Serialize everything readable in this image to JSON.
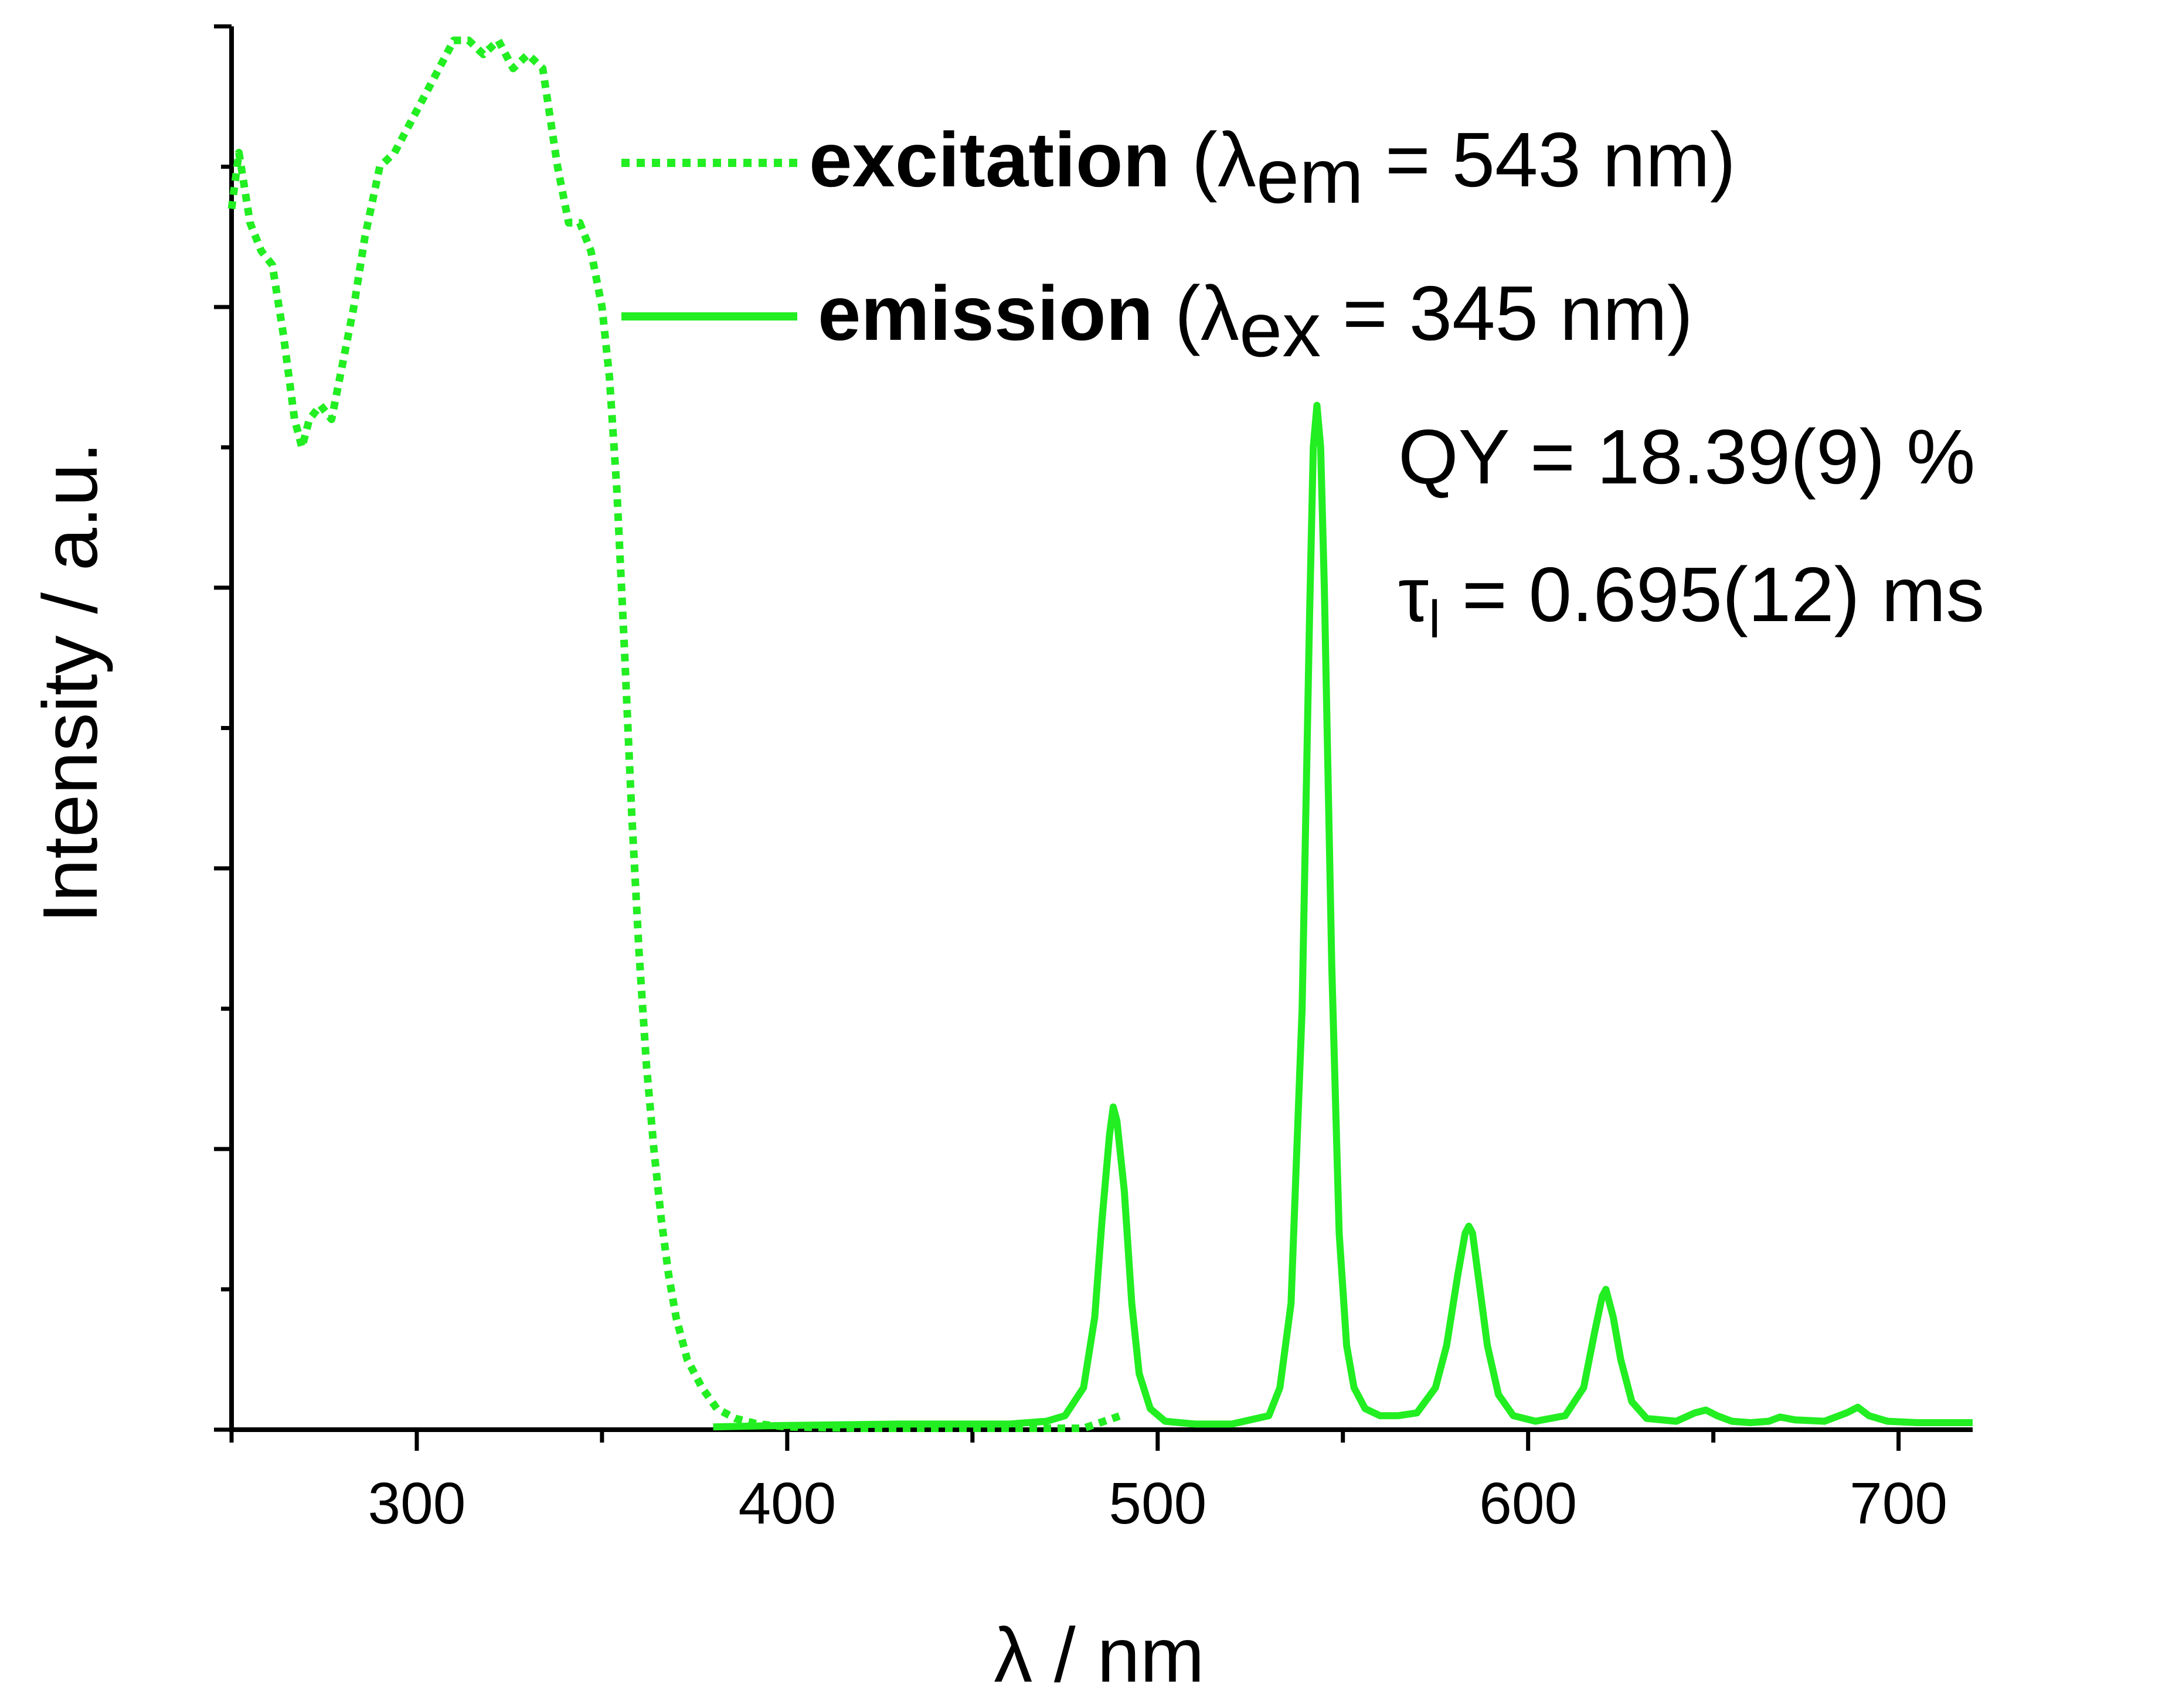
{
  "chart_data": {
    "type": "line",
    "xlabel": "λ / nm",
    "ylabel": "Intensity / a.u.",
    "xlim": [
      250,
      720
    ],
    "ylim": [
      0,
      1.0
    ],
    "x_ticks": [
      300,
      400,
      500,
      600,
      700
    ],
    "y_tick_labels_shown": false,
    "grid": false,
    "legend_position": "top-right",
    "series": [
      {
        "name": "excitation",
        "legend_suffix": "(λem = 543 nm)",
        "style": "dotted",
        "color": "#22ee22",
        "x": [
          250,
          252,
          255,
          258,
          261,
          264,
          267,
          269,
          271,
          274,
          277,
          280,
          283,
          286,
          290,
          294,
          298,
          302,
          306,
          310,
          314,
          318,
          322,
          326,
          330,
          334,
          338,
          341,
          344,
          347,
          350,
          352,
          354,
          356,
          358,
          360,
          362,
          364,
          366,
          368,
          370,
          373,
          377,
          381,
          386,
          392,
          400,
          420,
          450,
          480,
          490
        ],
        "y": [
          0.87,
          0.91,
          0.86,
          0.84,
          0.83,
          0.78,
          0.72,
          0.7,
          0.72,
          0.73,
          0.72,
          0.76,
          0.8,
          0.85,
          0.9,
          0.91,
          0.93,
          0.95,
          0.97,
          0.99,
          0.99,
          0.98,
          0.99,
          0.97,
          0.98,
          0.97,
          0.9,
          0.86,
          0.86,
          0.84,
          0.8,
          0.75,
          0.67,
          0.56,
          0.44,
          0.34,
          0.26,
          0.2,
          0.15,
          0.11,
          0.08,
          0.05,
          0.03,
          0.015,
          0.008,
          0.004,
          0.002,
          0.001,
          0.001,
          0.001,
          0.01
        ]
      },
      {
        "name": "emission",
        "legend_suffix": "(λex = 345 nm)",
        "style": "solid",
        "color": "#22ee22",
        "x": [
          380,
          400,
          430,
          460,
          470,
          475,
          480,
          483,
          485,
          487,
          488,
          489,
          491,
          493,
          495,
          498,
          502,
          510,
          520,
          530,
          533,
          536,
          539,
          541,
          542,
          543,
          544,
          545,
          547,
          549,
          551,
          553,
          556,
          560,
          565,
          570,
          575,
          578,
          581,
          583,
          584,
          585,
          587,
          589,
          592,
          596,
          602,
          610,
          615,
          618,
          620,
          621,
          623,
          625,
          628,
          632,
          640,
          645,
          648,
          651,
          655,
          660,
          665,
          668,
          672,
          680,
          686,
          689,
          692,
          697,
          705,
          715,
          720
        ],
        "y": [
          0.002,
          0.003,
          0.004,
          0.004,
          0.006,
          0.01,
          0.03,
          0.08,
          0.15,
          0.21,
          0.23,
          0.22,
          0.17,
          0.09,
          0.04,
          0.015,
          0.006,
          0.004,
          0.004,
          0.01,
          0.03,
          0.09,
          0.3,
          0.58,
          0.7,
          0.73,
          0.7,
          0.6,
          0.33,
          0.14,
          0.06,
          0.03,
          0.015,
          0.01,
          0.01,
          0.012,
          0.03,
          0.06,
          0.11,
          0.14,
          0.145,
          0.14,
          0.1,
          0.06,
          0.025,
          0.01,
          0.006,
          0.01,
          0.03,
          0.07,
          0.095,
          0.1,
          0.08,
          0.05,
          0.02,
          0.008,
          0.006,
          0.012,
          0.014,
          0.01,
          0.006,
          0.005,
          0.006,
          0.009,
          0.007,
          0.006,
          0.012,
          0.016,
          0.01,
          0.006,
          0.005,
          0.005,
          0.005
        ]
      }
    ],
    "annotations": [
      "QY = 18.39(9) %",
      "τl = 0.695(12) ms"
    ]
  },
  "labels": {
    "xlabel": "λ / nm",
    "ylabel": "Intensity / a.u.",
    "legend_excitation_name": "excitation",
    "legend_excitation_open": " (λ",
    "legend_excitation_sub": "em",
    "legend_excitation_close": " = 543 nm)",
    "legend_emission_name": "emission",
    "legend_emission_open": " (λ",
    "legend_emission_sub": "ex",
    "legend_emission_close": " = 345 nm)",
    "qy": "QY = 18.39(9) %",
    "tau_symbol": "τ",
    "tau_sub": "l",
    "tau_rest": " = 0.695(12) ms"
  },
  "colors": {
    "series": "#22ee22",
    "axis": "#000000"
  }
}
